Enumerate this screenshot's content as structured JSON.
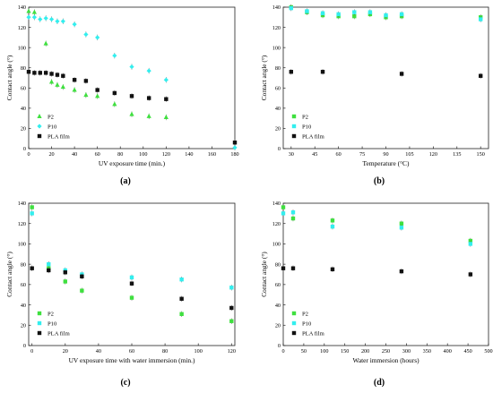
{
  "colors": {
    "P2": "#3fe03f",
    "P10": "#33eeee",
    "PLA film": "#111111",
    "errorbar": "#555555",
    "axis": "#222222"
  },
  "chart_data": [
    {
      "type": "scatter",
      "panel": "(a)",
      "xlabel": "UV exposure time (min.)",
      "ylabel": "Contact angle (°)",
      "xlim": [
        0,
        180
      ],
      "ylim": [
        0,
        140
      ],
      "xticks": [
        0,
        20,
        40,
        60,
        80,
        100,
        120,
        140,
        160,
        180
      ],
      "yticks": [
        0,
        20,
        40,
        60,
        80,
        100,
        120,
        140
      ],
      "legend_position": "bottom-left",
      "series": [
        {
          "name": "P2",
          "marker": "triangle-up",
          "x": [
            0,
            5,
            15,
            20,
            25,
            30,
            40,
            50,
            60,
            75,
            90,
            105,
            120
          ],
          "y": [
            136,
            135,
            104,
            66,
            63,
            61,
            58,
            53,
            52,
            44,
            34,
            32,
            31
          ]
        },
        {
          "name": "P10",
          "marker": "diamond",
          "x": [
            0,
            5,
            10,
            15,
            20,
            25,
            30,
            40,
            50,
            60,
            75,
            90,
            105,
            120,
            180
          ],
          "y": [
            130,
            130,
            128,
            129,
            128,
            126,
            126,
            123,
            113,
            110,
            92,
            81,
            77,
            68,
            1
          ]
        },
        {
          "name": "PLA film",
          "marker": "square",
          "x": [
            0,
            5,
            10,
            15,
            20,
            25,
            30,
            40,
            50,
            60,
            75,
            90,
            105,
            120,
            180
          ],
          "y": [
            76,
            75,
            75,
            75,
            74,
            73,
            72,
            68,
            67,
            58,
            55,
            52,
            50,
            49,
            6
          ]
        }
      ]
    },
    {
      "type": "scatter",
      "panel": "(b)",
      "xlabel": "Temperature (°C)",
      "ylabel": "Contact angle (°)",
      "xlim": [
        25,
        155
      ],
      "ylim": [
        0,
        140
      ],
      "xticks": [
        30,
        45,
        60,
        75,
        90,
        105,
        120,
        135,
        150
      ],
      "yticks": [
        0,
        20,
        40,
        60,
        80,
        100,
        120,
        140
      ],
      "legend_position": "bottom-left",
      "series": [
        {
          "name": "P2",
          "marker": "square",
          "x": [
            30,
            40,
            50,
            60,
            70,
            80,
            90,
            100,
            150
          ],
          "y": [
            140,
            135,
            132,
            131,
            131,
            133,
            130,
            131,
            130
          ]
        },
        {
          "name": "P10",
          "marker": "square",
          "x": [
            30,
            40,
            50,
            60,
            70,
            80,
            90,
            100,
            150
          ],
          "y": [
            139,
            136,
            134,
            133,
            135,
            135,
            132,
            133,
            128
          ]
        },
        {
          "name": "PLA film",
          "marker": "square",
          "x": [
            30,
            50,
            100,
            150
          ],
          "y": [
            76,
            76,
            74,
            72
          ]
        }
      ]
    },
    {
      "type": "scatter",
      "panel": "(c)",
      "xlabel": "UV exposure time with water immersion (min.)",
      "ylabel": "Contact angle (°)",
      "xlim": [
        -2,
        122
      ],
      "ylim": [
        0,
        140
      ],
      "xticks": [
        0,
        20,
        40,
        60,
        80,
        100,
        120
      ],
      "yticks": [
        0,
        20,
        40,
        60,
        80,
        100,
        120,
        140
      ],
      "legend_position": "bottom-left",
      "series": [
        {
          "name": "P2",
          "marker": "square",
          "x": [
            0,
            10,
            20,
            30,
            60,
            90,
            120
          ],
          "y": [
            136,
            76,
            63,
            54,
            47,
            31,
            24
          ]
        },
        {
          "name": "P10",
          "marker": "square",
          "x": [
            0,
            10,
            20,
            30,
            60,
            90,
            120
          ],
          "y": [
            130,
            80,
            74,
            70,
            67,
            65,
            57
          ]
        },
        {
          "name": "PLA film",
          "marker": "square",
          "x": [
            0,
            10,
            20,
            30,
            60,
            90,
            120
          ],
          "y": [
            76,
            74,
            72,
            68,
            61,
            46,
            37
          ]
        }
      ]
    },
    {
      "type": "scatter",
      "panel": "(d)",
      "xlabel": "Water immersion (hours)",
      "ylabel": "Contact angle (°)",
      "xlim": [
        0,
        500
      ],
      "ylim": [
        0,
        140
      ],
      "xticks": [
        0,
        50,
        100,
        150,
        200,
        250,
        300,
        350,
        400,
        450,
        500
      ],
      "yticks": [
        0,
        20,
        40,
        60,
        80,
        100,
        120,
        140
      ],
      "legend_position": "bottom-left",
      "series": [
        {
          "name": "P2",
          "marker": "square",
          "x": [
            0,
            24,
            120,
            288,
            456
          ],
          "y": [
            136,
            125,
            123,
            120,
            103
          ]
        },
        {
          "name": "P10",
          "marker": "square",
          "x": [
            0,
            24,
            120,
            288,
            456
          ],
          "y": [
            130,
            131,
            117,
            116,
            100
          ]
        },
        {
          "name": "PLA film",
          "marker": "square",
          "x": [
            0,
            24,
            120,
            288,
            456
          ],
          "y": [
            76,
            76,
            75,
            73,
            70
          ]
        }
      ]
    }
  ]
}
